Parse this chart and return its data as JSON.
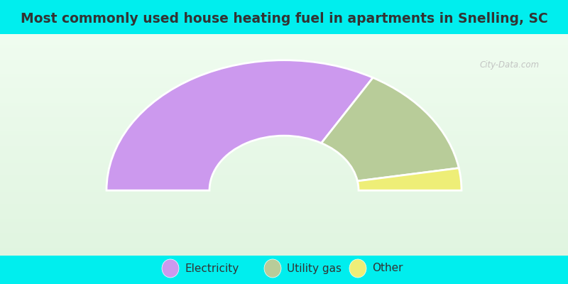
{
  "title": "Most commonly used house heating fuel in apartments in Snelling, SC",
  "segments": [
    {
      "label": "Electricity",
      "value": 66.7,
      "color": "#cc99ee"
    },
    {
      "label": "Utility gas",
      "value": 27.8,
      "color": "#b8cc99"
    },
    {
      "label": "Other",
      "value": 5.5,
      "color": "#eeee77"
    }
  ],
  "bg_cyan": "#00eeee",
  "bg_grad_top": "#e8f5e8",
  "bg_grad_bottom": "#f5fff5",
  "title_color": "#333333",
  "title_fontsize": 13.5,
  "legend_fontsize": 11,
  "watermark_text": "City-Data.com",
  "watermark_color": "#bbbbbb",
  "outer_r": 1.0,
  "inner_r": 0.42
}
